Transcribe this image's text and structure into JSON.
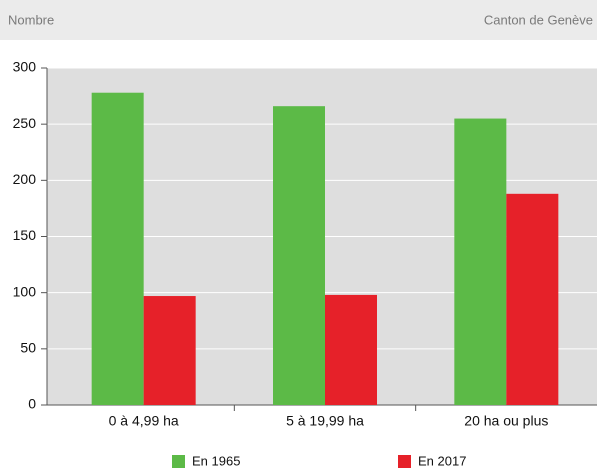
{
  "chart_data": {
    "type": "bar",
    "header_left": "Nombre",
    "header_right": "Canton de Genève",
    "categories": [
      "0 à 4,99 ha",
      "5 à 19,99 ha",
      "20 ha ou plus"
    ],
    "series": [
      {
        "name": "En 1965",
        "color": "#5cba47",
        "values": [
          278,
          266,
          255
        ]
      },
      {
        "name": "En 2017",
        "color": "#e62129",
        "values": [
          97,
          98,
          188
        ]
      }
    ],
    "ylim": [
      0,
      300
    ],
    "yticks": [
      0,
      50,
      100,
      150,
      200,
      250,
      300
    ],
    "grid": true
  }
}
